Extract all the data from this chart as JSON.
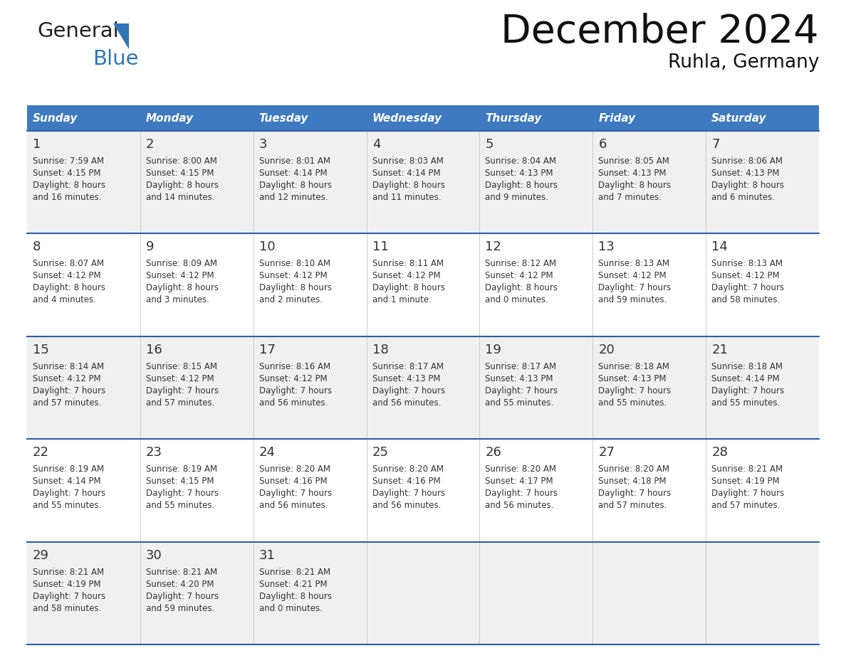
{
  "title": "December 2024",
  "subtitle": "Ruhla, Germany",
  "days_of_week": [
    "Sunday",
    "Monday",
    "Tuesday",
    "Wednesday",
    "Thursday",
    "Friday",
    "Saturday"
  ],
  "header_bg": "#3D7ABF",
  "header_text_color": "#FFFFFF",
  "cell_bg_light": "#F0F0F0",
  "cell_bg_white": "#FFFFFF",
  "cell_border_color": "#2E5FA3",
  "text_color": "#333333",
  "logo_general_color": "#222222",
  "logo_blue_color": "#2E75B6",
  "calendar_data": [
    {
      "week": 1,
      "days": [
        {
          "day": 1,
          "col": 0,
          "sunrise": "7:59 AM",
          "sunset": "4:15 PM",
          "daylight_line1": "Daylight: 8 hours",
          "daylight_line2": "and 16 minutes."
        },
        {
          "day": 2,
          "col": 1,
          "sunrise": "8:00 AM",
          "sunset": "4:15 PM",
          "daylight_line1": "Daylight: 8 hours",
          "daylight_line2": "and 14 minutes."
        },
        {
          "day": 3,
          "col": 2,
          "sunrise": "8:01 AM",
          "sunset": "4:14 PM",
          "daylight_line1": "Daylight: 8 hours",
          "daylight_line2": "and 12 minutes."
        },
        {
          "day": 4,
          "col": 3,
          "sunrise": "8:03 AM",
          "sunset": "4:14 PM",
          "daylight_line1": "Daylight: 8 hours",
          "daylight_line2": "and 11 minutes."
        },
        {
          "day": 5,
          "col": 4,
          "sunrise": "8:04 AM",
          "sunset": "4:13 PM",
          "daylight_line1": "Daylight: 8 hours",
          "daylight_line2": "and 9 minutes."
        },
        {
          "day": 6,
          "col": 5,
          "sunrise": "8:05 AM",
          "sunset": "4:13 PM",
          "daylight_line1": "Daylight: 8 hours",
          "daylight_line2": "and 7 minutes."
        },
        {
          "day": 7,
          "col": 6,
          "sunrise": "8:06 AM",
          "sunset": "4:13 PM",
          "daylight_line1": "Daylight: 8 hours",
          "daylight_line2": "and 6 minutes."
        }
      ]
    },
    {
      "week": 2,
      "days": [
        {
          "day": 8,
          "col": 0,
          "sunrise": "8:07 AM",
          "sunset": "4:12 PM",
          "daylight_line1": "Daylight: 8 hours",
          "daylight_line2": "and 4 minutes."
        },
        {
          "day": 9,
          "col": 1,
          "sunrise": "8:09 AM",
          "sunset": "4:12 PM",
          "daylight_line1": "Daylight: 8 hours",
          "daylight_line2": "and 3 minutes."
        },
        {
          "day": 10,
          "col": 2,
          "sunrise": "8:10 AM",
          "sunset": "4:12 PM",
          "daylight_line1": "Daylight: 8 hours",
          "daylight_line2": "and 2 minutes."
        },
        {
          "day": 11,
          "col": 3,
          "sunrise": "8:11 AM",
          "sunset": "4:12 PM",
          "daylight_line1": "Daylight: 8 hours",
          "daylight_line2": "and 1 minute."
        },
        {
          "day": 12,
          "col": 4,
          "sunrise": "8:12 AM",
          "sunset": "4:12 PM",
          "daylight_line1": "Daylight: 8 hours",
          "daylight_line2": "and 0 minutes."
        },
        {
          "day": 13,
          "col": 5,
          "sunrise": "8:13 AM",
          "sunset": "4:12 PM",
          "daylight_line1": "Daylight: 7 hours",
          "daylight_line2": "and 59 minutes."
        },
        {
          "day": 14,
          "col": 6,
          "sunrise": "8:13 AM",
          "sunset": "4:12 PM",
          "daylight_line1": "Daylight: 7 hours",
          "daylight_line2": "and 58 minutes."
        }
      ]
    },
    {
      "week": 3,
      "days": [
        {
          "day": 15,
          "col": 0,
          "sunrise": "8:14 AM",
          "sunset": "4:12 PM",
          "daylight_line1": "Daylight: 7 hours",
          "daylight_line2": "and 57 minutes."
        },
        {
          "day": 16,
          "col": 1,
          "sunrise": "8:15 AM",
          "sunset": "4:12 PM",
          "daylight_line1": "Daylight: 7 hours",
          "daylight_line2": "and 57 minutes."
        },
        {
          "day": 17,
          "col": 2,
          "sunrise": "8:16 AM",
          "sunset": "4:12 PM",
          "daylight_line1": "Daylight: 7 hours",
          "daylight_line2": "and 56 minutes."
        },
        {
          "day": 18,
          "col": 3,
          "sunrise": "8:17 AM",
          "sunset": "4:13 PM",
          "daylight_line1": "Daylight: 7 hours",
          "daylight_line2": "and 56 minutes."
        },
        {
          "day": 19,
          "col": 4,
          "sunrise": "8:17 AM",
          "sunset": "4:13 PM",
          "daylight_line1": "Daylight: 7 hours",
          "daylight_line2": "and 55 minutes."
        },
        {
          "day": 20,
          "col": 5,
          "sunrise": "8:18 AM",
          "sunset": "4:13 PM",
          "daylight_line1": "Daylight: 7 hours",
          "daylight_line2": "and 55 minutes."
        },
        {
          "day": 21,
          "col": 6,
          "sunrise": "8:18 AM",
          "sunset": "4:14 PM",
          "daylight_line1": "Daylight: 7 hours",
          "daylight_line2": "and 55 minutes."
        }
      ]
    },
    {
      "week": 4,
      "days": [
        {
          "day": 22,
          "col": 0,
          "sunrise": "8:19 AM",
          "sunset": "4:14 PM",
          "daylight_line1": "Daylight: 7 hours",
          "daylight_line2": "and 55 minutes."
        },
        {
          "day": 23,
          "col": 1,
          "sunrise": "8:19 AM",
          "sunset": "4:15 PM",
          "daylight_line1": "Daylight: 7 hours",
          "daylight_line2": "and 55 minutes."
        },
        {
          "day": 24,
          "col": 2,
          "sunrise": "8:20 AM",
          "sunset": "4:16 PM",
          "daylight_line1": "Daylight: 7 hours",
          "daylight_line2": "and 56 minutes."
        },
        {
          "day": 25,
          "col": 3,
          "sunrise": "8:20 AM",
          "sunset": "4:16 PM",
          "daylight_line1": "Daylight: 7 hours",
          "daylight_line2": "and 56 minutes."
        },
        {
          "day": 26,
          "col": 4,
          "sunrise": "8:20 AM",
          "sunset": "4:17 PM",
          "daylight_line1": "Daylight: 7 hours",
          "daylight_line2": "and 56 minutes."
        },
        {
          "day": 27,
          "col": 5,
          "sunrise": "8:20 AM",
          "sunset": "4:18 PM",
          "daylight_line1": "Daylight: 7 hours",
          "daylight_line2": "and 57 minutes."
        },
        {
          "day": 28,
          "col": 6,
          "sunrise": "8:21 AM",
          "sunset": "4:19 PM",
          "daylight_line1": "Daylight: 7 hours",
          "daylight_line2": "and 57 minutes."
        }
      ]
    },
    {
      "week": 5,
      "days": [
        {
          "day": 29,
          "col": 0,
          "sunrise": "8:21 AM",
          "sunset": "4:19 PM",
          "daylight_line1": "Daylight: 7 hours",
          "daylight_line2": "and 58 minutes."
        },
        {
          "day": 30,
          "col": 1,
          "sunrise": "8:21 AM",
          "sunset": "4:20 PM",
          "daylight_line1": "Daylight: 7 hours",
          "daylight_line2": "and 59 minutes."
        },
        {
          "day": 31,
          "col": 2,
          "sunrise": "8:21 AM",
          "sunset": "4:21 PM",
          "daylight_line1": "Daylight: 8 hours",
          "daylight_line2": "and 0 minutes."
        }
      ]
    }
  ],
  "fig_width": 11.88,
  "fig_height": 9.18,
  "dpi": 100
}
